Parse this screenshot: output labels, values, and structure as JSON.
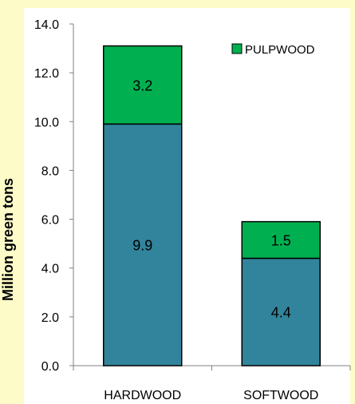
{
  "chart_data": {
    "type": "bar",
    "stacked": true,
    "title": "",
    "xlabel": "",
    "ylabel": "Million green tons",
    "categories": [
      "HARDWOOD",
      "SOFTWOOD"
    ],
    "ylim": [
      0,
      14
    ],
    "yticks": [
      "0.0",
      "2.0",
      "4.0",
      "6.0",
      "8.0",
      "10.0",
      "12.0",
      "14.0"
    ],
    "series": [
      {
        "name": "",
        "values": [
          9.9,
          4.4
        ],
        "labels": [
          "9.9",
          "4.4"
        ],
        "color": "#31849b"
      },
      {
        "name": "PULPWOOD",
        "values": [
          3.2,
          1.5
        ],
        "labels": [
          "3.2",
          "1.5"
        ],
        "color": "#00b050"
      }
    ],
    "legend_position": "top-right",
    "grid": false
  },
  "colors": {
    "background": "#fdfbc8",
    "plot_background": "#ffffff",
    "base_series": "#31849b",
    "pulpwood": "#00b050"
  }
}
